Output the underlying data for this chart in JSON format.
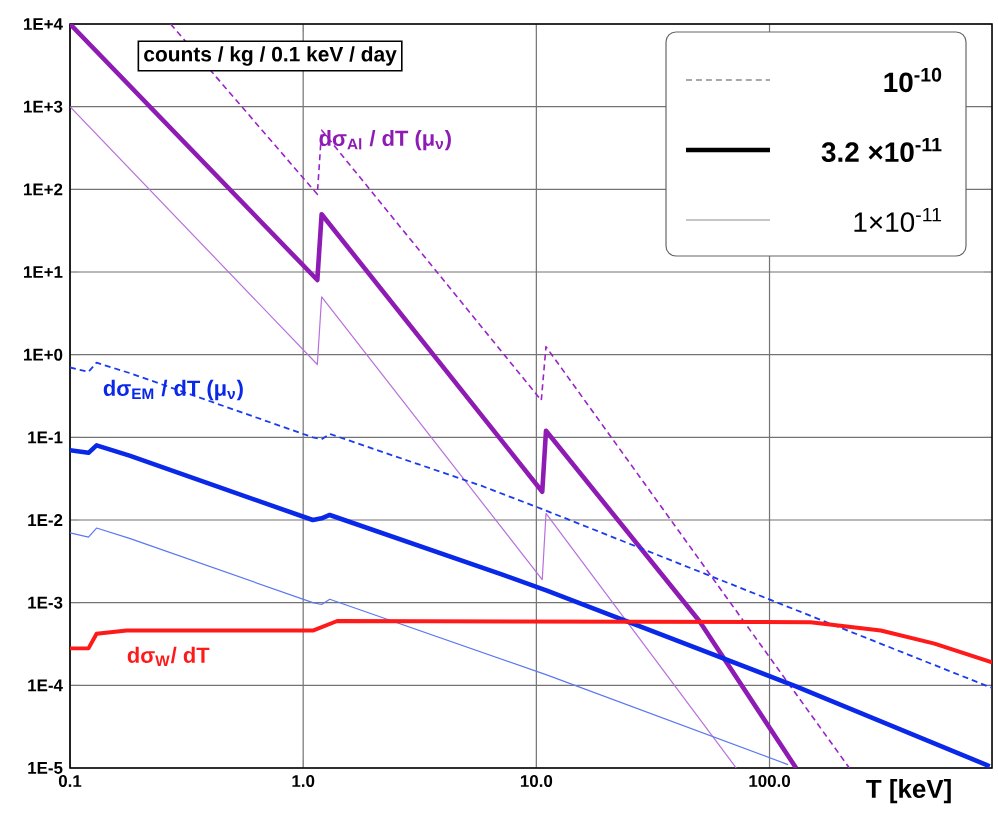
{
  "chart_data": {
    "type": "line",
    "log": "xy",
    "grid": true,
    "xlabel": "T  [keV]",
    "xlim": [
      0.1,
      900
    ],
    "ylim": [
      1e-05,
      10000
    ],
    "xticks": [
      0.1,
      {
        "value": 1,
        "label": "1.0"
      },
      {
        "value": 10,
        "label": "10.0"
      },
      {
        "value": 100,
        "label": "100.0"
      }
    ],
    "yticks": [
      {
        "value": 1e-05,
        "label": "1E-5"
      },
      {
        "value": 0.0001,
        "label": "1E-4"
      },
      {
        "value": 0.001,
        "label": "1E-3"
      },
      {
        "value": 0.01,
        "label": "1E-2"
      },
      {
        "value": 0.1,
        "label": "1E-1"
      },
      {
        "value": 1,
        "label": "1E+0"
      },
      {
        "value": 10,
        "label": "1E+1"
      },
      {
        "value": 100,
        "label": "1E+2"
      },
      {
        "value": 1000,
        "label": "1E+3"
      },
      {
        "value": 10000,
        "label": "1E+4"
      }
    ],
    "annotations": [
      "counts / kg / 0.1 keV / day",
      "dσ$_{Al}$ / dT (μ$_{ν}$)",
      "dσ$_{EM}$ / dT (μ$_{ν}$)",
      "dσ$_{W}$/ dT",
      "10$^{-10}$",
      "3.2 ×10$^{-11}$",
      "1×10$^{-11}$"
    ],
    "series": [
      {
        "color": "#9a22c8",
        "line_style": "dashed",
        "x": [
          0.27,
          1.15,
          1.2,
          10.5,
          11,
          220
        ],
        "values": [
          10000,
          87,
          520,
          0.28,
          1.25,
          1e-05
        ]
      },
      {
        "color": "#8e1cb4",
        "line_style": "solid",
        "x": [
          0.1,
          1.15,
          1.2,
          10.6,
          11,
          50,
          130
        ],
        "values": [
          10000,
          8,
          50,
          0.022,
          0.12,
          0.0006,
          1e-05
        ]
      },
      {
        "color": "#b870dc",
        "line_style": "solid",
        "x": [
          0.1,
          1.15,
          1.2,
          10.6,
          11,
          72
        ],
        "values": [
          1000,
          0.76,
          5,
          0.0019,
          0.012,
          1e-05
        ]
      },
      {
        "color": "#1a3cf0",
        "line_style": "dashed",
        "x": [
          0.1,
          0.12,
          0.13,
          0.18,
          1.1,
          1.2,
          1.3,
          5.8,
          11,
          900
        ],
        "values": [
          0.7,
          0.62,
          0.8,
          0.6,
          0.1,
          0.095,
          0.11,
          0.026,
          0.013,
          9.3e-05
        ]
      },
      {
        "color": "#0a28e8",
        "line_style": "solid",
        "x": [
          0.1,
          0.12,
          0.13,
          0.18,
          1.1,
          1.2,
          1.3,
          7.1,
          11.1,
          129,
          880
        ],
        "values": [
          0.07,
          0.065,
          0.08,
          0.06,
          0.01,
          0.0105,
          0.0115,
          0.0022,
          0.0014,
          9.8e-05,
          1.05e-05
        ]
      },
      {
        "color": "#5a78f0",
        "line_style": "solid",
        "x": [
          0.1,
          0.12,
          0.13,
          0.18,
          1.1,
          1.2,
          1.3,
          11,
          120
        ],
        "values": [
          0.007,
          0.0062,
          0.008,
          0.006,
          0.001,
          0.00095,
          0.0011,
          0.000135,
          1.1e-05
        ]
      },
      {
        "color": "#ff1a1a",
        "line_style": "solid",
        "x": [
          0.1,
          0.12,
          0.13,
          0.175,
          1.1,
          1.4,
          150,
          300,
          510,
          900
        ],
        "values": [
          0.00028,
          0.00028,
          0.00042,
          0.00046,
          0.00046,
          0.0006,
          0.00058,
          0.00046,
          0.00032,
          0.00019
        ]
      }
    ]
  }
}
